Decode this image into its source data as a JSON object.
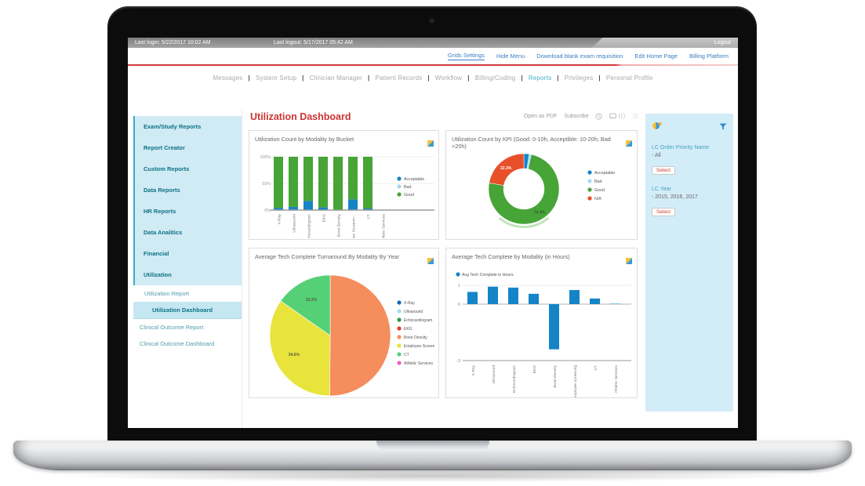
{
  "topbar": {
    "last_login": "Last login: 5/22/2017 10:02 AM",
    "last_logout": "Last logout: 5/17/2017 05:42 AM",
    "logout": "Logout"
  },
  "quick_links": {
    "items": [
      "Grids Settings",
      "Hide Menu",
      "Download blank exam requisition",
      "Edit Home Page",
      "Billing Platform"
    ],
    "active": "Grids Settings"
  },
  "nav": {
    "items": [
      "Messages",
      "System Setup",
      "Clinician Manager",
      "Patient Records",
      "Workflow",
      "Billing/Coding",
      "Reports",
      "Privileges",
      "Personal Profile"
    ],
    "active": "Reports",
    "separator": "|"
  },
  "sidebar": {
    "main_items": [
      "Exam/Study Reports",
      "Report Creator",
      "Custom Reports",
      "Data Reports",
      "HR Reports",
      "Data Analitics",
      "Financial",
      "Utilization"
    ],
    "sub_items": [
      {
        "label": "Utilization Report",
        "active": false,
        "level": 1
      },
      {
        "label": "Utilization Dashboard",
        "active": true,
        "level": 2
      },
      {
        "label": "Clinical Outcome Report",
        "active": false,
        "level": 0
      },
      {
        "label": "Clinical Outcome Dashboard",
        "active": false,
        "level": 0
      }
    ]
  },
  "page": {
    "title": "Utilization Dashboard",
    "open_as_pdf": "Open as PDF",
    "subscribe": "Subscribe",
    "comment_count": "(1)",
    "star_icon": "☆"
  },
  "filter_panel": {
    "groups": [
      {
        "label": "LC Order Priority Name",
        "value": "- All",
        "button": "Select"
      },
      {
        "label": "LC Year",
        "value": "- 2015, 2016, 2017",
        "button": "Select"
      }
    ]
  },
  "icons": {
    "card_corner": "chart-export-icon",
    "panel_left": "slicer-chart-icon",
    "panel_right": "funnel-filter-icon",
    "meta": [
      "history-icon",
      "comment-icon",
      "favorite-star-icon"
    ]
  },
  "colors": {
    "accent_red": "#cc3333",
    "link_blue": "#3a7fc2",
    "nav_active_teal": "#3fafc9",
    "sidebar_teal": "#0d7186",
    "panel_blue": "#d3edf8",
    "series_blue": "#1584c7",
    "series_light_blue": "#a6d9f2",
    "series_green": "#47a437",
    "series_orange": "#e8502a"
  },
  "chart_data": [
    {
      "type": "bar",
      "stacked": true,
      "title": "Utilization Count by Modality by Bucket",
      "categories": [
        "X-Ray",
        "Ultrasound",
        "Echocardiogram",
        "EKG",
        "Bone Density",
        "Employee Screenin...",
        "CT",
        "Athletic Services"
      ],
      "series": [
        {
          "name": "Acceptable",
          "color": "#1584c7",
          "values": [
            4,
            6,
            17,
            5,
            0,
            20,
            3,
            0
          ]
        },
        {
          "name": "Bad",
          "color": "#a6d9f2",
          "values": [
            0,
            0,
            0,
            0,
            0,
            0,
            0,
            0
          ]
        },
        {
          "name": "Good",
          "color": "#47a437",
          "values": [
            96,
            94,
            83,
            95,
            100,
            80,
            97,
            0
          ]
        }
      ],
      "ylim": [
        0,
        100
      ],
      "yticks": [
        "0%",
        "50%",
        "100%"
      ],
      "legend_position": "right"
    },
    {
      "type": "pie",
      "subtype": "donut",
      "title": "Utilization Count by KPI (Good: 0-10h, Acceptible: 10-20h; Bad >20h)",
      "slices": [
        {
          "name": "Acceptable",
          "value": 2.4,
          "color": "#1584c7",
          "label": ""
        },
        {
          "name": "Bad",
          "value": 1.0,
          "color": "#a6d9f2",
          "label": ""
        },
        {
          "name": "Good",
          "value": 74.3,
          "color": "#47a437",
          "label": "74.3%"
        },
        {
          "name": "N/A",
          "value": 22.3,
          "color": "#e8502a",
          "label": "22.3%"
        }
      ],
      "legend_position": "right"
    },
    {
      "type": "pie",
      "title": "Average Tech Complete Turnaround By Modality By Year",
      "slices": [
        {
          "name": "X-Ray",
          "value": 0,
          "color": "#1b66b5",
          "label": ""
        },
        {
          "name": "Ultrasound",
          "value": 0,
          "color": "#a6d9f2",
          "label": ""
        },
        {
          "name": "Echocardiogram",
          "value": 0,
          "color": "#2f9e41",
          "label": ""
        },
        {
          "name": "EKG",
          "value": 0,
          "color": "#e03f2c",
          "label": ""
        },
        {
          "name": "Bone Density",
          "value": 50.1,
          "color": "#f58d5d",
          "label": ""
        },
        {
          "name": "Employee Screen",
          "value": 34.6,
          "color": "#e8e43c",
          "label": "34.6%"
        },
        {
          "name": "CT",
          "value": 15.3,
          "color": "#55d077",
          "label": "15.3%"
        },
        {
          "name": "Athletic Services",
          "value": 0,
          "color": "#f25cc8",
          "label": ""
        }
      ],
      "legend_position": "right"
    },
    {
      "type": "bar",
      "title": "Average Tech Complete by Modality (in Hours)",
      "legend": "Avg Tech Complete in Hours",
      "categories": [
        "X-Ray",
        "Ultrasound",
        "Echocardiogram",
        "EKG",
        "Bone Density",
        "Employee Screening",
        "CT",
        "Athletic Services"
      ],
      "values": [
        0.65,
        0.93,
        0.88,
        0.55,
        -2.4,
        0.75,
        0.3,
        0.05
      ],
      "bar_colors": [
        "#1584c7",
        "#1584c7",
        "#1584c7",
        "#1584c7",
        "#1584c7",
        "#1584c7",
        "#1584c7",
        "#8fcdec"
      ],
      "ylim": [
        -3,
        1
      ],
      "yticks": [
        1,
        0,
        -3
      ],
      "legend_position": "top"
    }
  ]
}
